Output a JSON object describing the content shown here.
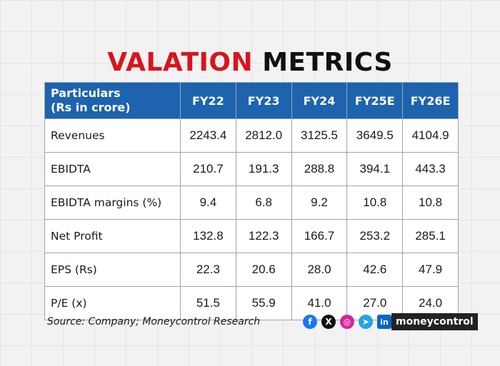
{
  "title": {
    "part1": "VALATION",
    "part2": "METRICS"
  },
  "table": {
    "header": {
      "line1": "Particulars",
      "line2": "(Rs in crore)",
      "years": [
        "FY22",
        "FY23",
        "FY24",
        "FY25E",
        "FY26E"
      ]
    },
    "rows": [
      {
        "label": "Revenues",
        "values": [
          "2243.4",
          "2812.0",
          "3125.5",
          "3649.5",
          "4104.9"
        ]
      },
      {
        "label": "EBIDTA",
        "values": [
          "210.7",
          "191.3",
          "288.8",
          "394.1",
          "443.3"
        ]
      },
      {
        "label": "EBIDTA margins (%)",
        "values": [
          "9.4",
          "6.8",
          "9.2",
          "10.8",
          "10.8"
        ]
      },
      {
        "label": "Net Profit",
        "values": [
          "132.8",
          "122.3",
          "166.7",
          "253.2",
          "285.1"
        ]
      },
      {
        "label": "EPS (Rs)",
        "values": [
          "22.3",
          "20.6",
          "28.0",
          "42.6",
          "47.9"
        ]
      },
      {
        "label": "P/E (x)",
        "values": [
          "51.5",
          "55.9",
          "41.0",
          "27.0",
          "24.0"
        ]
      }
    ]
  },
  "footer": {
    "source": "Source: Company; Moneycontrol Research",
    "social_icons": [
      "facebook-icon",
      "x-icon",
      "instagram-icon",
      "telegram-icon",
      "linkedin-icon"
    ],
    "brand": "moneycontrol"
  },
  "colors": {
    "title_red": "#d7151d",
    "header_blue": "#1e63ad"
  }
}
